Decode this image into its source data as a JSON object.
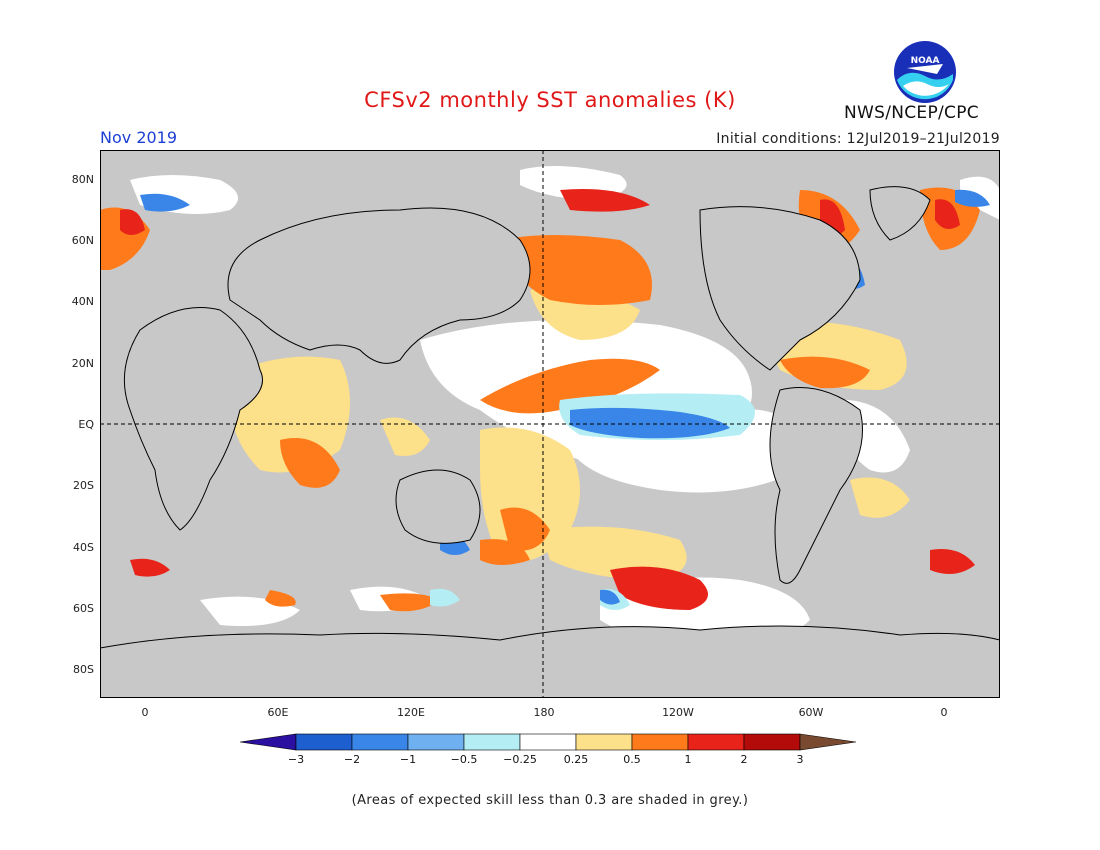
{
  "title": "CFSv2 monthly SST anomalies (K)",
  "month": "Nov 2019",
  "initial_conditions": "Initial conditions: 12Jul2019–21Jul2019",
  "agency": "NWS/NCEP/CPC",
  "logo": {
    "name": "noaa-logo",
    "text": "NOAA"
  },
  "y_ticks": [
    "80N",
    "60N",
    "40N",
    "20N",
    "EQ",
    "20S",
    "40S",
    "60S",
    "80S"
  ],
  "x_ticks": [
    "0",
    "60E",
    "120E",
    "180",
    "120W",
    "60W",
    "0"
  ],
  "colorbar": {
    "labels": [
      "−3",
      "−2",
      "−1",
      "−0.5",
      "−0.25",
      "0.25",
      "0.5",
      "1",
      "2",
      "3"
    ],
    "colors": [
      "#2a0fa0",
      "#1e5fd0",
      "#3a86e8",
      "#6fb0f0",
      "#b4eef4",
      "#ffffff",
      "#fde08a",
      "#ff7a1a",
      "#e8241a",
      "#b30a0a",
      "#7a4a30"
    ]
  },
  "footnote": "(Areas of expected skill less than 0.3 are shaded in grey.)",
  "map_colors": {
    "skill_grey": "#c8c8c8",
    "ocean_white": "#ffffff",
    "coast": "#000000"
  }
}
